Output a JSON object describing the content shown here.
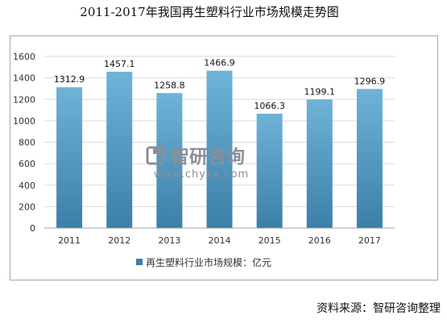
{
  "title": "2011-2017年我国再生塑料行业市场规模走势图",
  "source": "资料来源：智研咨询整理",
  "watermark": {
    "brand": "智研咨询",
    "url": "www.chyxx.com"
  },
  "colors": {
    "bar_top": "#6fb3d8",
    "bar_bottom": "#3c7fa8",
    "grid": "#d9d9d9",
    "axis": "#a6a6a6"
  },
  "chart_data": {
    "type": "bar",
    "categories": [
      "2011",
      "2012",
      "2013",
      "2014",
      "2015",
      "2016",
      "2017"
    ],
    "series": [
      {
        "name": "再生塑料行业市场规模：亿元",
        "values": [
          1312.9,
          1457.1,
          1258.8,
          1466.9,
          1066.3,
          1199.1,
          1296.9
        ]
      }
    ],
    "value_labels": [
      "1312.9",
      "1457.1",
      "1258.8",
      "1466.9",
      "1066.3",
      "1199.1",
      "1296.9"
    ],
    "ylim": [
      0,
      1600
    ],
    "yticks": [
      "0",
      "200",
      "400",
      "600",
      "800",
      "1000",
      "1200",
      "1400",
      "1600"
    ],
    "grid": true,
    "legend": "bottom"
  }
}
